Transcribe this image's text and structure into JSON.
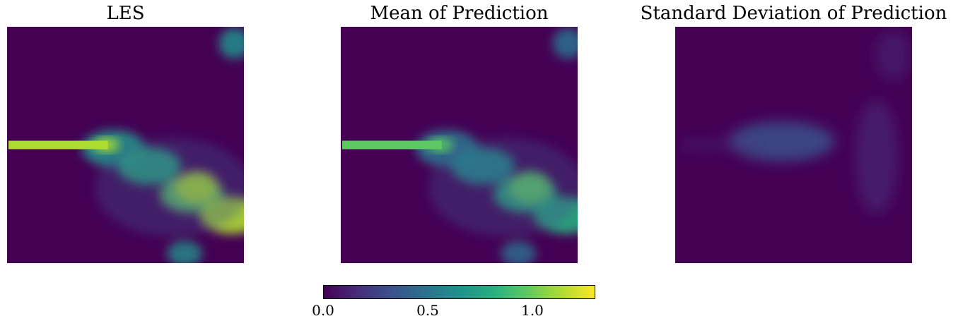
{
  "chart_data": [
    {
      "type": "heatmap",
      "title": "LES",
      "value_range": [
        0.0,
        1.3
      ],
      "features": {
        "jet_row_fraction": 0.5,
        "jet_value": 1.1,
        "background_value": 0.05,
        "plume_peak_value": 1.2
      }
    },
    {
      "type": "heatmap",
      "title": "Mean of Prediction",
      "value_range": [
        0.0,
        1.3
      ],
      "features": {
        "jet_row_fraction": 0.5,
        "jet_value": 1.0,
        "background_value": 0.08,
        "plume_peak_value": 0.95
      }
    },
    {
      "type": "heatmap",
      "title": "Standard Deviation of Prediction",
      "value_range": [
        0.0,
        1.3
      ],
      "features": {
        "jet_row_fraction": 0.5,
        "jet_value": 0.12,
        "background_value": 0.03,
        "plume_peak_value": 0.25
      }
    }
  ],
  "colorbar": {
    "colormap": "viridis",
    "min": 0.0,
    "max": 1.3,
    "tick_values": [
      0.0,
      0.5,
      1.0
    ],
    "tick_labels": [
      "0.0",
      "0.5",
      "1.0"
    ],
    "stops": [
      "#440154",
      "#472d7b",
      "#3b528b",
      "#2c728e",
      "#21918c",
      "#28ae80",
      "#5ec962",
      "#addc30",
      "#fde725"
    ]
  }
}
